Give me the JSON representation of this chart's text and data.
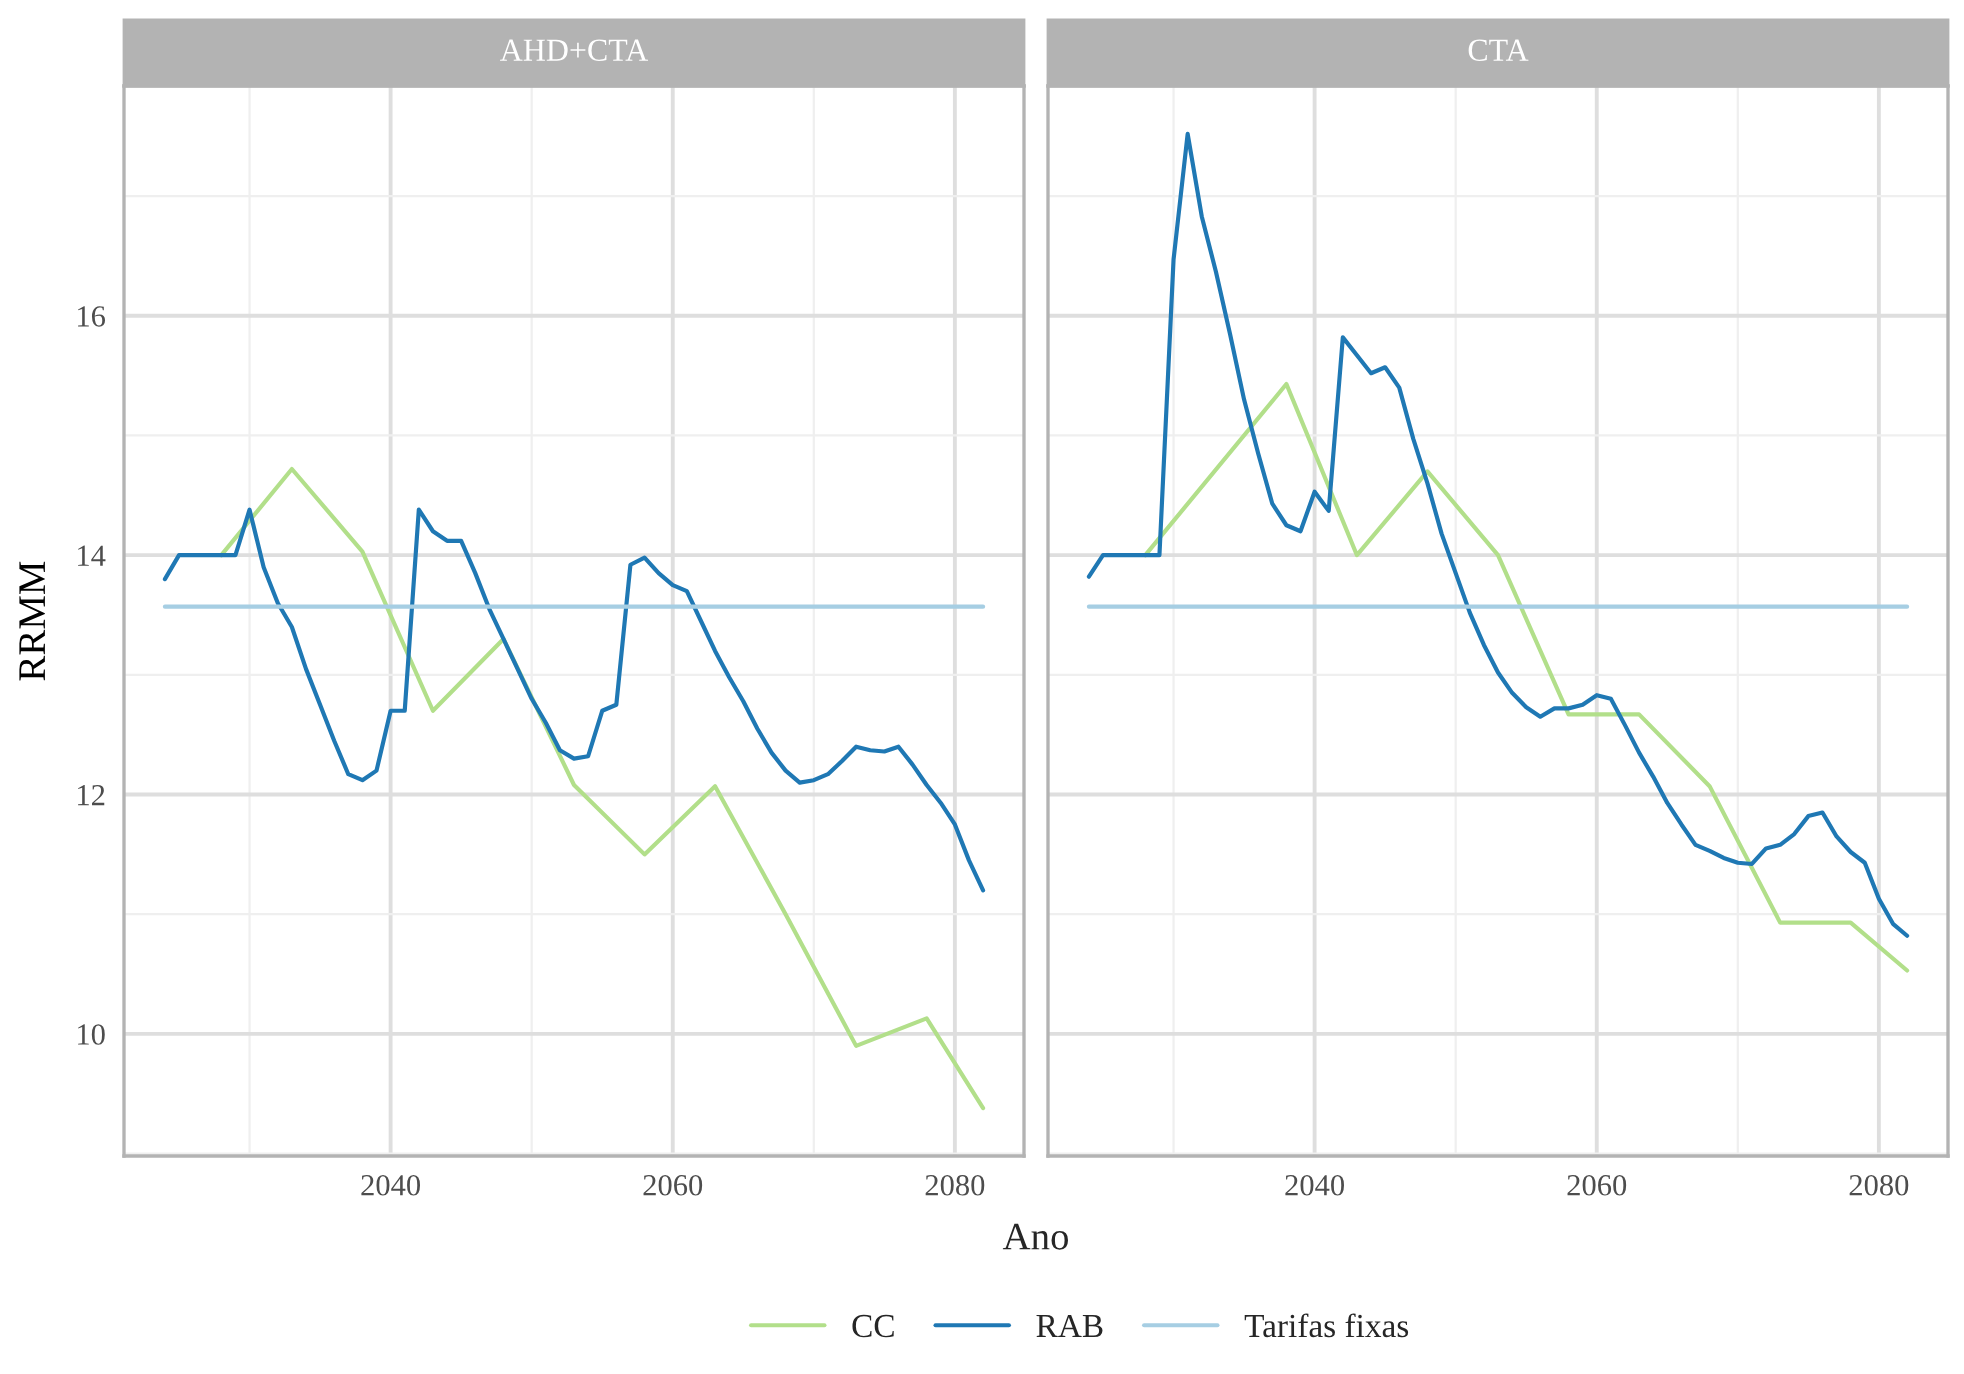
{
  "chart_data": [
    {
      "type": "line",
      "title": "AHD+CTA",
      "xlabel": "Ano",
      "ylabel": "RRMM",
      "xlim": [
        2021.1,
        2084.9
      ],
      "ylim": [
        8.98,
        17.92
      ],
      "xticks": [
        2040,
        2060,
        2080
      ],
      "yticks": [
        10,
        12,
        14,
        16
      ],
      "grid": true,
      "legend": "bottom",
      "marker": "none",
      "line_style": "solid",
      "series": [
        {
          "name": "CC",
          "color": "#b2df8a",
          "x": [
            2028,
            2033,
            2038,
            2043,
            2048,
            2053,
            2058,
            2063,
            2068,
            2073,
            2078,
            2082
          ],
          "values": [
            14.0,
            14.72,
            14.03,
            12.7,
            13.3,
            12.08,
            11.5,
            12.07,
            11.0,
            9.9,
            10.13,
            9.38
          ]
        },
        {
          "name": "RAB",
          "color": "#1f78b4",
          "x": [
            2024,
            2025,
            2026,
            2027,
            2028,
            2029,
            2030,
            2031,
            2032,
            2033,
            2034,
            2035,
            2036,
            2037,
            2038,
            2039,
            2040,
            2041,
            2042,
            2043,
            2044,
            2045,
            2046,
            2047,
            2048,
            2049,
            2050,
            2051,
            2052,
            2053,
            2054,
            2055,
            2056,
            2057,
            2058,
            2059,
            2060,
            2061,
            2062,
            2063,
            2064,
            2065,
            2066,
            2067,
            2068,
            2069,
            2070,
            2071,
            2072,
            2073,
            2074,
            2075,
            2076,
            2077,
            2078,
            2079,
            2080,
            2081,
            2082
          ],
          "values": [
            13.8,
            14.0,
            14.0,
            14.0,
            14.0,
            14.0,
            14.38,
            13.9,
            13.6,
            13.4,
            13.05,
            12.75,
            12.45,
            12.17,
            12.12,
            12.2,
            12.7,
            12.7,
            14.38,
            14.2,
            14.12,
            14.12,
            13.85,
            13.55,
            13.3,
            13.05,
            12.8,
            12.6,
            12.37,
            12.3,
            12.32,
            12.7,
            12.75,
            13.92,
            13.98,
            13.85,
            13.75,
            13.7,
            13.45,
            13.2,
            12.98,
            12.78,
            12.55,
            12.35,
            12.2,
            12.1,
            12.12,
            12.17,
            12.28,
            12.4,
            12.37,
            12.36,
            12.4,
            12.25,
            12.08,
            11.93,
            11.75,
            11.45,
            11.2
          ]
        },
        {
          "name": "Tarifas fixas",
          "color": "#a6cee3",
          "x": [
            2024,
            2082
          ],
          "values": [
            13.57,
            13.57
          ]
        }
      ]
    },
    {
      "type": "line",
      "title": "CTA",
      "xlim": [
        2021.1,
        2084.9
      ],
      "ylim": [
        8.98,
        17.92
      ],
      "xticks": [
        2040,
        2060,
        2080
      ],
      "yticks": [
        10,
        12,
        14,
        16
      ],
      "tick_labels": "x",
      "grid": true,
      "marker": "none",
      "line_style": "solid",
      "series": [
        {
          "name": "CC",
          "color": "#b2df8a",
          "x": [
            2028,
            2038,
            2043,
            2048,
            2053,
            2058,
            2063,
            2068,
            2073,
            2078,
            2082
          ],
          "values": [
            14.0,
            15.43,
            14.0,
            14.7,
            14.0,
            12.67,
            12.67,
            12.07,
            10.93,
            10.93,
            10.53
          ]
        },
        {
          "name": "RAB",
          "color": "#1f78b4",
          "x": [
            2024,
            2025,
            2026,
            2027,
            2028,
            2029,
            2030,
            2031,
            2032,
            2033,
            2034,
            2035,
            2036,
            2037,
            2038,
            2039,
            2040,
            2041,
            2042,
            2043,
            2044,
            2045,
            2046,
            2047,
            2048,
            2049,
            2050,
            2051,
            2052,
            2053,
            2054,
            2055,
            2056,
            2057,
            2058,
            2059,
            2060,
            2061,
            2062,
            2063,
            2064,
            2065,
            2066,
            2067,
            2068,
            2069,
            2070,
            2071,
            2072,
            2073,
            2074,
            2075,
            2076,
            2077,
            2078,
            2079,
            2080,
            2081,
            2082
          ],
          "values": [
            13.82,
            14.0,
            14.0,
            14.0,
            14.0,
            14.0,
            16.47,
            17.52,
            16.83,
            16.37,
            15.85,
            15.3,
            14.85,
            14.43,
            14.25,
            14.2,
            14.53,
            14.37,
            15.82,
            15.67,
            15.52,
            15.57,
            15.4,
            14.97,
            14.6,
            14.18,
            13.85,
            13.52,
            13.25,
            13.02,
            12.85,
            12.73,
            12.65,
            12.72,
            12.72,
            12.75,
            12.83,
            12.8,
            12.58,
            12.35,
            12.15,
            11.93,
            11.75,
            11.58,
            11.53,
            11.47,
            11.43,
            11.42,
            11.55,
            11.58,
            11.67,
            11.82,
            11.85,
            11.65,
            11.52,
            11.43,
            11.13,
            10.92,
            10.82
          ]
        },
        {
          "name": "Tarifas fixas",
          "color": "#a6cee3",
          "x": [
            2024,
            2082
          ],
          "values": [
            13.57,
            13.57
          ]
        }
      ]
    }
  ]
}
